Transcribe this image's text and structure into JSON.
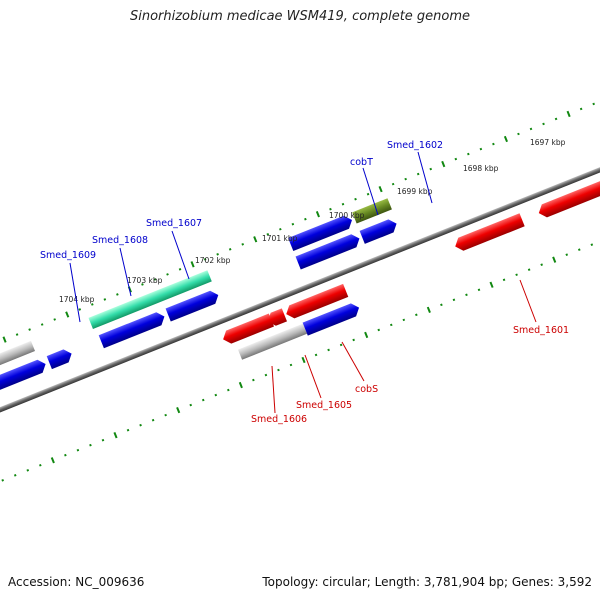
{
  "title": "Sinorhizobium medicae WSM419, complete genome",
  "accession": "Accession: NC_009636",
  "summary": "Topology: circular; Length: 3,781,904 bp; Genes: 3,592",
  "colors": {
    "forward": "#0000cc",
    "reverse": "#cc0000",
    "backbone": "#555555",
    "tick": "#118811",
    "rna": "#33ddaa",
    "olive": "#668822",
    "pseudo": "#aaaaaa"
  },
  "scale": {
    "ticks": [
      "1704 kbp",
      "1703 kbp",
      "1702 kbp",
      "1701 kbp",
      "1700 kbp",
      "1699 kbp",
      "1698 kbp",
      "1697 kbp"
    ]
  },
  "genes": {
    "forward": [
      "Smed_1609",
      "Smed_1608",
      "Smed_1607",
      "cobT",
      "Smed_1602"
    ],
    "reverse": [
      "Smed_1606",
      "Smed_1605",
      "cobS",
      "Smed_1601"
    ]
  }
}
